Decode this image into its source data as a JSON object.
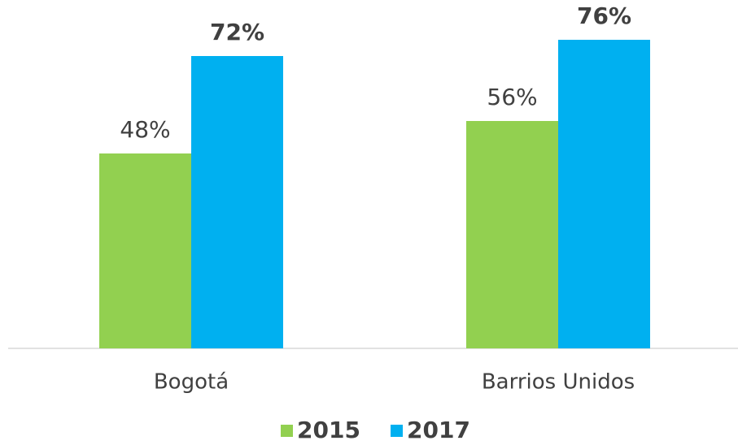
{
  "chart_data": {
    "type": "bar",
    "categories": [
      "Bogotá",
      "Barrios Unidos"
    ],
    "series": [
      {
        "name": "2015",
        "color": "#92d050",
        "values": [
          48,
          56
        ],
        "value_labels": [
          "48%",
          "56%"
        ]
      },
      {
        "name": "2017",
        "color": "#00b0f0",
        "values": [
          72,
          76
        ],
        "value_labels": [
          "72%",
          "76%"
        ]
      }
    ],
    "ylim": [
      0,
      80
    ]
  }
}
